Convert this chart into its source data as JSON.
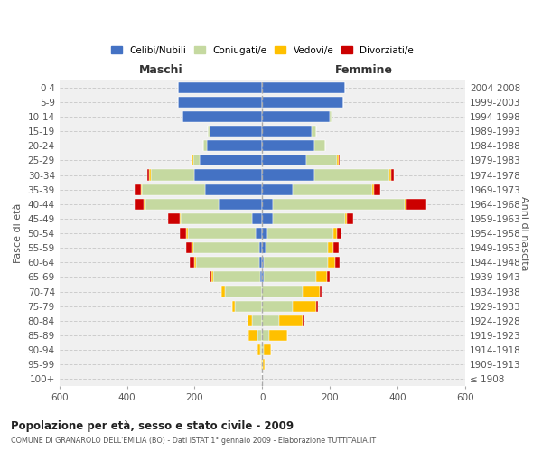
{
  "age_groups": [
    "0-4",
    "5-9",
    "10-14",
    "15-19",
    "20-24",
    "25-29",
    "30-34",
    "35-39",
    "40-44",
    "45-49",
    "50-54",
    "55-59",
    "60-64",
    "65-69",
    "70-74",
    "75-79",
    "80-84",
    "85-89",
    "90-94",
    "95-99",
    "100+"
  ],
  "birth_years": [
    "2004-2008",
    "1999-2003",
    "1994-1998",
    "1989-1993",
    "1984-1988",
    "1979-1983",
    "1974-1978",
    "1969-1973",
    "1964-1968",
    "1959-1963",
    "1954-1958",
    "1949-1953",
    "1944-1948",
    "1939-1943",
    "1934-1938",
    "1929-1933",
    "1924-1928",
    "1919-1923",
    "1914-1918",
    "1909-1913",
    "≤ 1908"
  ],
  "males": {
    "celibi": [
      250,
      250,
      235,
      155,
      165,
      185,
      200,
      170,
      130,
      30,
      20,
      10,
      10,
      5,
      0,
      0,
      0,
      0,
      0,
      0,
      0
    ],
    "coniugati": [
      0,
      0,
      0,
      5,
      10,
      20,
      130,
      185,
      215,
      210,
      200,
      195,
      185,
      140,
      110,
      80,
      30,
      15,
      5,
      2,
      0
    ],
    "vedovi": [
      0,
      0,
      0,
      0,
      0,
      5,
      5,
      5,
      5,
      5,
      5,
      5,
      5,
      5,
      10,
      10,
      15,
      25,
      8,
      2,
      0
    ],
    "divorziati": [
      0,
      0,
      0,
      0,
      0,
      0,
      5,
      15,
      25,
      35,
      20,
      15,
      15,
      5,
      0,
      0,
      0,
      0,
      0,
      0,
      0
    ]
  },
  "females": {
    "nubili": [
      245,
      240,
      200,
      145,
      155,
      130,
      155,
      90,
      30,
      30,
      15,
      10,
      5,
      5,
      0,
      0,
      0,
      0,
      0,
      0,
      0
    ],
    "coniugate": [
      0,
      0,
      5,
      15,
      30,
      90,
      220,
      235,
      390,
      215,
      195,
      185,
      190,
      155,
      120,
      90,
      50,
      20,
      5,
      2,
      0
    ],
    "vedove": [
      0,
      0,
      0,
      0,
      0,
      5,
      5,
      5,
      5,
      5,
      10,
      15,
      20,
      30,
      50,
      70,
      70,
      55,
      20,
      5,
      0
    ],
    "divorziate": [
      0,
      0,
      0,
      0,
      0,
      5,
      10,
      20,
      60,
      20,
      15,
      15,
      15,
      10,
      5,
      5,
      5,
      0,
      0,
      0,
      0
    ]
  },
  "colors": {
    "celibi": "#4472c4",
    "coniugati": "#c5d9a0",
    "vedovi": "#ffc000",
    "divorziati": "#cc0000"
  },
  "xlim": 600,
  "title": "Popolazione per età, sesso e stato civile - 2009",
  "subtitle": "COMUNE DI GRANAROLO DELL'EMILIA (BO) - Dati ISTAT 1° gennaio 2009 - Elaborazione TUTTITALIA.IT",
  "ylabel_left": "Fasce di età",
  "ylabel_right": "Anni di nascita",
  "xlabel_maschi": "Maschi",
  "xlabel_femmine": "Femmine",
  "legend_labels": [
    "Celibi/Nubili",
    "Coniugati/e",
    "Vedovi/e",
    "Divorziati/e"
  ],
  "background_color": "#ffffff",
  "grid_color": "#cccccc"
}
